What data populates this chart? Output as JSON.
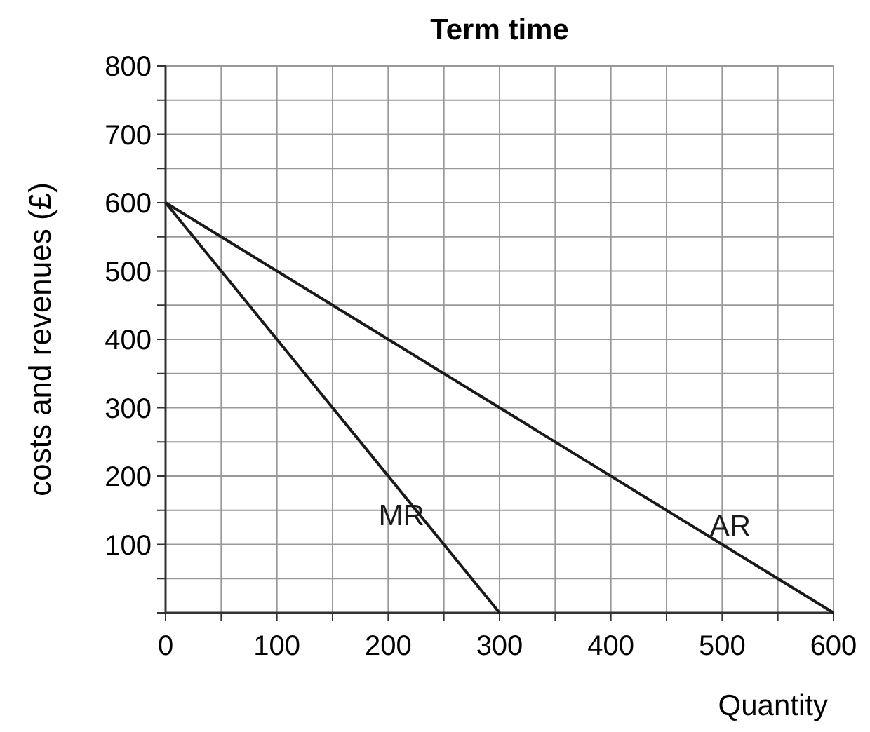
{
  "chart_data": {
    "type": "line",
    "title": "Term time",
    "xlabel": "Quantity",
    "ylabel": "costs and revenues (£)",
    "series": [
      {
        "name": "AR",
        "color": "#1a1a1a",
        "x": [
          0,
          600
        ],
        "values": [
          600,
          0
        ]
      },
      {
        "name": "MR",
        "color": "#1a1a1a",
        "x": [
          0,
          300
        ],
        "values": [
          600,
          0
        ]
      }
    ],
    "xlim": [
      0,
      600
    ],
    "ylim": [
      0,
      800
    ],
    "xticks": [
      0,
      {
        "value": 50,
        "label": null
      },
      100,
      {
        "value": 150,
        "label": null
      },
      200,
      {
        "value": 250,
        "label": null
      },
      300,
      {
        "value": 350,
        "label": null
      },
      400,
      {
        "value": 450,
        "label": null
      },
      500,
      {
        "value": 550,
        "label": null
      },
      600
    ],
    "yticks": [
      {
        "value": 0,
        "label": null
      },
      {
        "value": 50,
        "label": null
      },
      100,
      {
        "value": 150,
        "label": null
      },
      200,
      {
        "value": 250,
        "label": null
      },
      300,
      {
        "value": 350,
        "label": null
      },
      400,
      {
        "value": 450,
        "label": null
      },
      500,
      {
        "value": 550,
        "label": null
      },
      600,
      {
        "value": 650,
        "label": null
      },
      700,
      {
        "value": 750,
        "label": null
      },
      800
    ],
    "grid": true,
    "marker": "none",
    "line_style": "solid"
  }
}
